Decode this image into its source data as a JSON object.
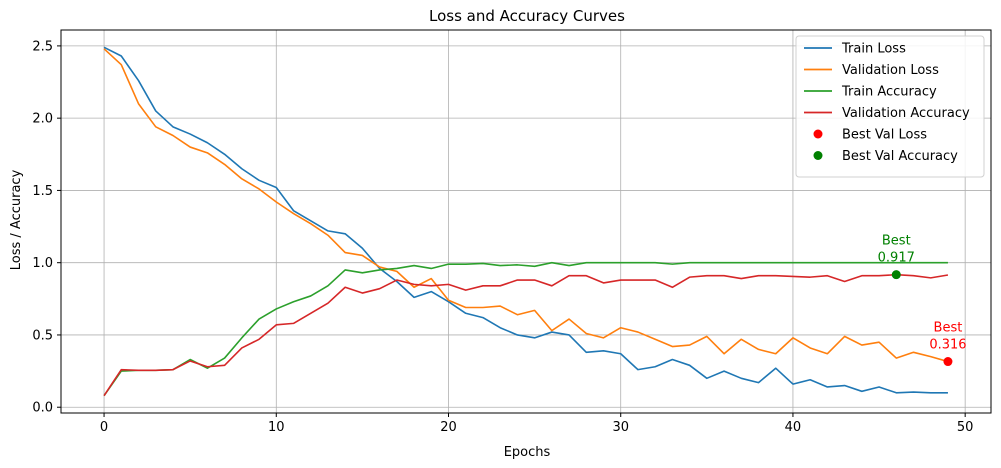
{
  "chart_data": {
    "type": "line",
    "title": "Loss and Accuracy Curves",
    "xlabel": "Epochs",
    "ylabel": "Loss / Accuracy",
    "xlim": [
      -2.5,
      51.5
    ],
    "ylim": [
      -0.04,
      2.61
    ],
    "xticks": [
      0,
      10,
      20,
      30,
      40,
      50
    ],
    "yticks": [
      0.0,
      0.5,
      1.0,
      1.5,
      2.0,
      2.5
    ],
    "xtick_labels": [
      "0",
      "10",
      "20",
      "30",
      "40",
      "50"
    ],
    "ytick_labels": [
      "0.0",
      "0.5",
      "1.0",
      "1.5",
      "2.0",
      "2.5"
    ],
    "grid": true,
    "legend_position": "top-right",
    "x": [
      0,
      1,
      2,
      3,
      4,
      5,
      6,
      7,
      8,
      9,
      10,
      11,
      12,
      13,
      14,
      15,
      16,
      17,
      18,
      19,
      20,
      21,
      22,
      23,
      24,
      25,
      26,
      27,
      28,
      29,
      30,
      31,
      32,
      33,
      34,
      35,
      36,
      37,
      38,
      39,
      40,
      41,
      42,
      43,
      44,
      45,
      46,
      47,
      48,
      49
    ],
    "series": [
      {
        "name": "Train Loss",
        "color": "#1f77b4",
        "values": [
          2.49,
          2.43,
          2.26,
          2.05,
          1.94,
          1.89,
          1.83,
          1.75,
          1.65,
          1.57,
          1.52,
          1.36,
          1.29,
          1.22,
          1.2,
          1.1,
          0.96,
          0.87,
          0.76,
          0.8,
          0.73,
          0.65,
          0.62,
          0.55,
          0.5,
          0.48,
          0.52,
          0.5,
          0.38,
          0.39,
          0.37,
          0.26,
          0.28,
          0.33,
          0.29,
          0.2,
          0.25,
          0.2,
          0.17,
          0.27,
          0.16,
          0.19,
          0.14,
          0.15,
          0.11,
          0.14,
          0.1,
          0.105,
          0.1,
          0.1
        ]
      },
      {
        "name": "Validation Loss",
        "color": "#ff7f0e",
        "values": [
          2.48,
          2.37,
          2.1,
          1.94,
          1.88,
          1.8,
          1.76,
          1.68,
          1.58,
          1.51,
          1.42,
          1.34,
          1.27,
          1.19,
          1.07,
          1.05,
          0.97,
          0.94,
          0.83,
          0.89,
          0.74,
          0.69,
          0.69,
          0.7,
          0.64,
          0.67,
          0.53,
          0.61,
          0.51,
          0.48,
          0.55,
          0.52,
          0.47,
          0.42,
          0.43,
          0.49,
          0.37,
          0.47,
          0.4,
          0.37,
          0.48,
          0.41,
          0.37,
          0.49,
          0.43,
          0.45,
          0.34,
          0.38,
          0.35,
          0.316
        ]
      },
      {
        "name": "Train Accuracy",
        "color": "#2ca02c",
        "values": [
          0.08,
          0.25,
          0.255,
          0.255,
          0.26,
          0.33,
          0.27,
          0.34,
          0.48,
          0.61,
          0.68,
          0.73,
          0.77,
          0.84,
          0.95,
          0.93,
          0.95,
          0.96,
          0.98,
          0.96,
          0.99,
          0.99,
          0.995,
          0.98,
          0.985,
          0.975,
          1.0,
          0.98,
          1.0,
          1.0,
          1.0,
          1.0,
          1.0,
          0.99,
          1.0,
          1.0,
          1.0,
          1.0,
          1.0,
          1.0,
          1.0,
          1.0,
          1.0,
          1.0,
          1.0,
          1.0,
          1.0,
          1.0,
          1.0,
          1.0
        ]
      },
      {
        "name": "Validation Accuracy",
        "color": "#d62728",
        "values": [
          0.08,
          0.26,
          0.255,
          0.255,
          0.26,
          0.32,
          0.28,
          0.29,
          0.41,
          0.47,
          0.57,
          0.58,
          0.65,
          0.72,
          0.83,
          0.79,
          0.82,
          0.88,
          0.85,
          0.84,
          0.85,
          0.81,
          0.84,
          0.84,
          0.88,
          0.88,
          0.84,
          0.91,
          0.91,
          0.86,
          0.88,
          0.88,
          0.88,
          0.83,
          0.9,
          0.91,
          0.91,
          0.89,
          0.91,
          0.91,
          0.905,
          0.9,
          0.91,
          0.87,
          0.91,
          0.91,
          0.917,
          0.91,
          0.895,
          0.915
        ]
      }
    ],
    "markers": [
      {
        "name": "Best Val Loss",
        "color": "#ff0000",
        "x": 49,
        "y": 0.316,
        "label_line1": "Best",
        "label_line2": "0.316"
      },
      {
        "name": "Best Val Accuracy",
        "color": "#008000",
        "x": 46,
        "y": 0.917,
        "label_line1": "Best",
        "label_line2": "0.917"
      }
    ]
  }
}
